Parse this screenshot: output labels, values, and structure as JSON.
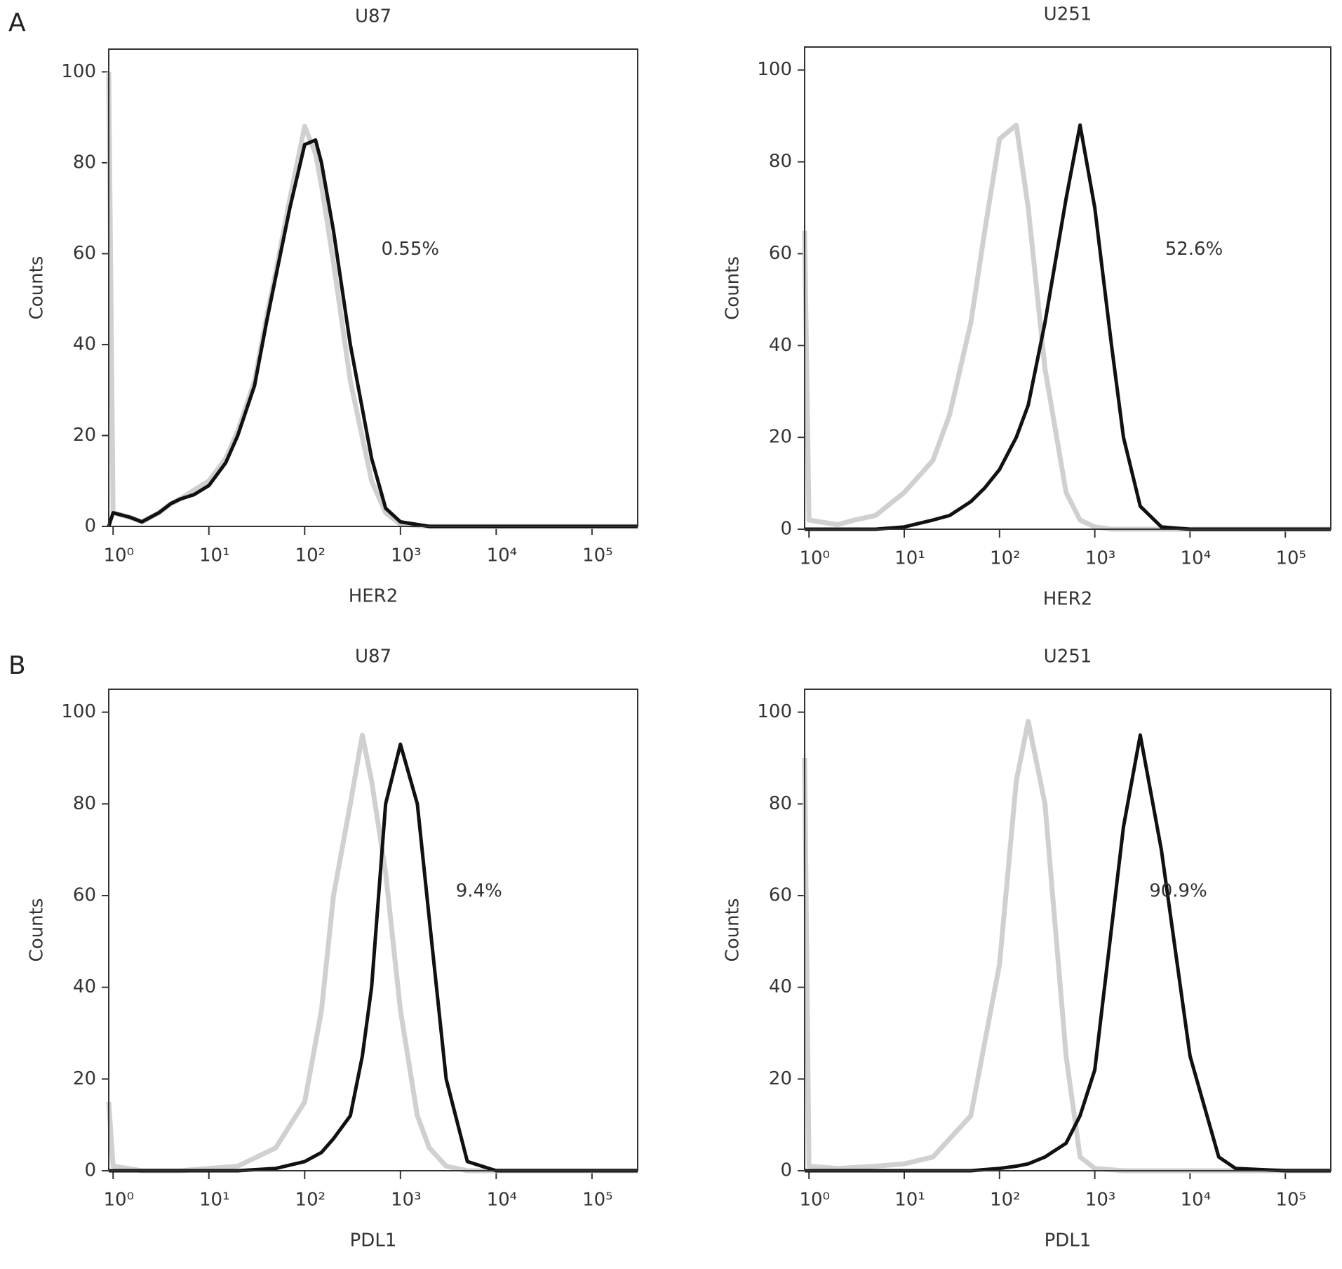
{
  "panel_labels": [
    "A",
    "B"
  ],
  "chart_data": [
    {
      "type": "line",
      "title": "U87",
      "x_label": "HER2",
      "y_label": "Counts",
      "annotation": "0.55%",
      "log_x": true,
      "xlim": [
        0.9,
        300000
      ],
      "ylim": [
        0,
        105
      ],
      "xticks": [
        {
          "value": 1,
          "label": "10⁰"
        },
        {
          "value": 10,
          "label": "10¹"
        },
        {
          "value": 100,
          "label": "10²"
        },
        {
          "value": 1000,
          "label": "10³"
        },
        {
          "value": 10000,
          "label": "10⁴"
        },
        {
          "value": 100000,
          "label": "10⁵"
        }
      ],
      "yticks": [
        0,
        20,
        40,
        60,
        80,
        100
      ],
      "x": [
        0.9,
        1,
        1.5,
        2,
        3,
        4,
        5,
        7,
        10,
        15,
        20,
        30,
        40,
        50,
        70,
        100,
        130,
        150,
        200,
        300,
        500,
        700,
        1000,
        2000,
        10000,
        100000,
        300000
      ],
      "series": [
        {
          "color": "#d0d0d0",
          "values": [
            100,
            3,
            2,
            1,
            3,
            5,
            6,
            8,
            10,
            15,
            21,
            32,
            46,
            56,
            72,
            88,
            82,
            75,
            58,
            32,
            10,
            3,
            0.5,
            0,
            0,
            0,
            0
          ]
        },
        {
          "color": "#111111",
          "values": [
            0,
            3,
            2,
            1,
            3,
            5,
            6,
            7,
            9,
            14,
            20,
            31,
            45,
            55,
            70,
            84,
            85,
            80,
            65,
            40,
            15,
            4,
            1,
            0,
            0,
            0,
            0
          ]
        }
      ]
    },
    {
      "type": "line",
      "title": "U251",
      "x_label": "HER2",
      "y_label": "Counts",
      "annotation": "52.6%",
      "log_x": true,
      "xlim": [
        0.9,
        300000
      ],
      "ylim": [
        0,
        105
      ],
      "xticks": [
        {
          "value": 1,
          "label": "10⁰"
        },
        {
          "value": 10,
          "label": "10¹"
        },
        {
          "value": 100,
          "label": "10²"
        },
        {
          "value": 1000,
          "label": "10³"
        },
        {
          "value": 10000,
          "label": "10⁴"
        },
        {
          "value": 100000,
          "label": "10⁵"
        }
      ],
      "yticks": [
        0,
        20,
        40,
        60,
        80,
        100
      ],
      "x": [
        0.9,
        1,
        2,
        3,
        5,
        10,
        20,
        30,
        50,
        70,
        100,
        150,
        200,
        300,
        500,
        700,
        1000,
        1500,
        2000,
        3000,
        5000,
        10000,
        100000,
        300000
      ],
      "series": [
        {
          "color": "#d0d0d0",
          "values": [
            65,
            2,
            1,
            2,
            3,
            8,
            15,
            25,
            45,
            65,
            85,
            88,
            70,
            35,
            8,
            2,
            0.5,
            0,
            0,
            0,
            0,
            0,
            0,
            0
          ]
        },
        {
          "color": "#111111",
          "values": [
            0,
            0,
            0,
            0,
            0,
            0.5,
            2,
            3,
            6,
            9,
            13,
            20,
            27,
            45,
            72,
            88,
            70,
            40,
            20,
            5,
            0.5,
            0,
            0,
            0
          ]
        }
      ]
    },
    {
      "type": "line",
      "title": "U87",
      "x_label": "PDL1",
      "y_label": "Counts",
      "annotation": "9.4%",
      "log_x": true,
      "xlim": [
        0.9,
        300000
      ],
      "ylim": [
        0,
        105
      ],
      "xticks": [
        {
          "value": 1,
          "label": "10⁰"
        },
        {
          "value": 10,
          "label": "10¹"
        },
        {
          "value": 100,
          "label": "10²"
        },
        {
          "value": 1000,
          "label": "10³"
        },
        {
          "value": 10000,
          "label": "10⁴"
        },
        {
          "value": 100000,
          "label": "10⁵"
        }
      ],
      "yticks": [
        0,
        20,
        40,
        60,
        80,
        100
      ],
      "x": [
        0.9,
        1,
        2,
        5,
        10,
        20,
        50,
        100,
        150,
        200,
        300,
        400,
        500,
        700,
        1000,
        1500,
        2000,
        3000,
        5000,
        10000,
        100000,
        300000
      ],
      "series": [
        {
          "color": "#d0d0d0",
          "values": [
            15,
            1,
            0,
            0,
            0.5,
            1,
            5,
            15,
            35,
            60,
            80,
            95,
            85,
            65,
            35,
            12,
            5,
            1,
            0,
            0,
            0,
            0
          ]
        },
        {
          "color": "#111111",
          "values": [
            0,
            0,
            0,
            0,
            0,
            0,
            0.5,
            2,
            4,
            7,
            12,
            25,
            40,
            80,
            93,
            80,
            55,
            20,
            2,
            0,
            0,
            0
          ]
        }
      ]
    },
    {
      "type": "line",
      "title": "U251",
      "x_label": "PDL1",
      "y_label": "Counts",
      "annotation": "90.9%",
      "log_x": true,
      "xlim": [
        0.9,
        300000
      ],
      "ylim": [
        0,
        105
      ],
      "xticks": [
        {
          "value": 1,
          "label": "10⁰"
        },
        {
          "value": 10,
          "label": "10¹"
        },
        {
          "value": 100,
          "label": "10²"
        },
        {
          "value": 1000,
          "label": "10³"
        },
        {
          "value": 10000,
          "label": "10⁴"
        },
        {
          "value": 100000,
          "label": "10⁵"
        }
      ],
      "yticks": [
        0,
        20,
        40,
        60,
        80,
        100
      ],
      "x": [
        0.9,
        1,
        2,
        5,
        10,
        20,
        50,
        100,
        150,
        200,
        300,
        500,
        700,
        1000,
        2000,
        3000,
        5000,
        10000,
        20000,
        30000,
        100000,
        300000
      ],
      "series": [
        {
          "color": "#d0d0d0",
          "values": [
            90,
            1,
            0.5,
            1,
            1.5,
            3,
            12,
            45,
            85,
            98,
            80,
            25,
            3,
            0.5,
            0,
            0,
            0,
            0,
            0,
            0,
            0,
            0
          ]
        },
        {
          "color": "#111111",
          "values": [
            0,
            0,
            0,
            0,
            0,
            0,
            0,
            0.5,
            1,
            1.5,
            3,
            6,
            12,
            22,
            75,
            95,
            70,
            25,
            3,
            0.5,
            0,
            0
          ]
        }
      ]
    }
  ]
}
